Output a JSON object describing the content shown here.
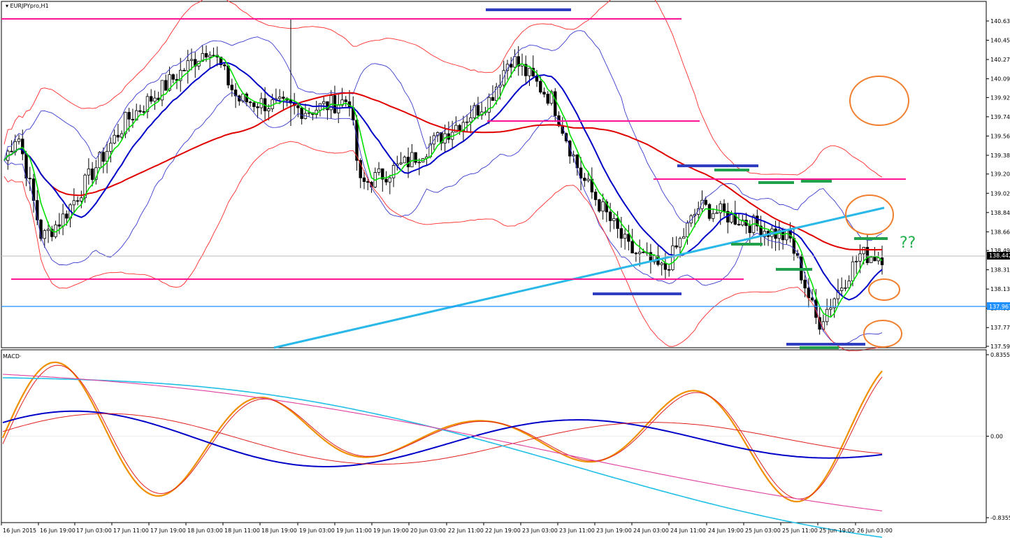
{
  "colors": {
    "background": "#ffffff",
    "grid_border": "#000000",
    "candle": "#000000",
    "sma_fast": "#00e000",
    "sma_mid": "#0000c8",
    "sma_slow": "#e00000",
    "bollinger_outer_red": "#ff2b2b",
    "bollinger_blue": "#3a3acf",
    "trendline": "#29b8e8",
    "support_line": "#1e90ff",
    "pink_levels": "#ff1493",
    "blue_marks": "#2f3fbf",
    "green_marks": "#22a14c",
    "orange_circles": "#f08030",
    "macd_blue": "#0000c8",
    "macd_cyan": "#22bfe6",
    "macd_pink": "#e040a0",
    "macd_orange": "#f09000",
    "macd_red": "#e02020"
  },
  "chart_data": [
    {
      "type": "candlestick",
      "title": "EURJPYpro,H1",
      "y_ticks": [
        "140.635",
        "140.455",
        "140.275",
        "140.095",
        "139.920",
        "139.740",
        "139.560",
        "139.380",
        "139.205",
        "139.025",
        "138.845",
        "138.665",
        "138.490",
        "138.310",
        "138.130",
        "137.950",
        "137.770",
        "137.595"
      ],
      "ylim": [
        137.595,
        140.635
      ],
      "current_price_label": "138.442",
      "support_price_label": "137.967",
      "x_ticks": [
        "16 Jun 2015",
        "16 Jun 19:00",
        "17 Jun 03:00",
        "17 Jun 11:00",
        "17 Jun 19:00",
        "18 Jun 03:00",
        "18 Jun 11:00",
        "18 Jun 19:00",
        "19 Jun 03:00",
        "19 Jun 11:00",
        "19 Jun 19:00",
        "20 Jun 03:00",
        "22 Jun 11:00",
        "22 Jun 19:00",
        "23 Jun 03:00",
        "23 Jun 11:00",
        "23 Jun 19:00",
        "24 Jun 03:00",
        "24 Jun 11:00",
        "24 Jun 19:00",
        "25 Jun 03:00",
        "25 Jun 11:00",
        "25 Jun 19:00",
        "26 Jun 03:00"
      ],
      "annotation": "??",
      "key_closes": [
        139.25,
        139.6,
        138.6,
        138.8,
        139.7,
        140.4,
        139.9,
        139.8,
        139.9,
        139.1,
        139.3,
        139.9,
        140.3,
        139.9,
        139.2,
        138.5,
        138.3,
        138.9,
        138.8,
        138.6,
        137.8,
        138.45,
        138.44
      ]
    },
    {
      "type": "line",
      "title": "MACD",
      "y_ticks": [
        "0.8355",
        "0.00",
        "-0.8355"
      ],
      "ylim": [
        -0.8355,
        0.8355
      ]
    }
  ]
}
